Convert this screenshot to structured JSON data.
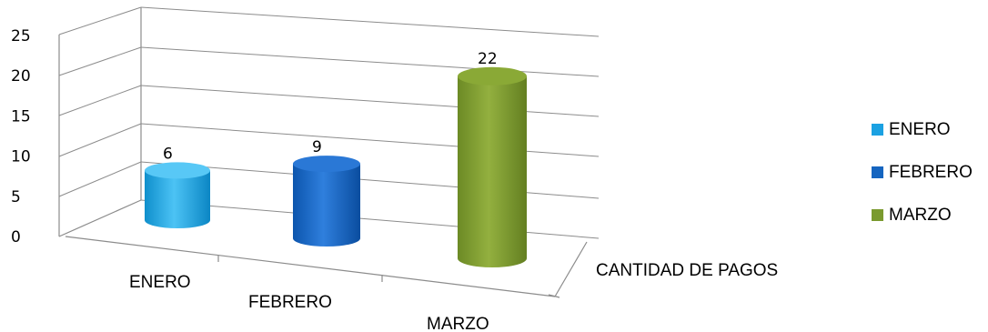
{
  "chart_data": {
    "type": "bar",
    "categories": [
      "ENERO",
      "FEBRERO",
      "MARZO"
    ],
    "series": [
      {
        "name": "ENERO",
        "values": [
          6,
          null,
          null
        ],
        "color": "#1ba1e2"
      },
      {
        "name": "FEBRERO",
        "values": [
          null,
          9,
          null
        ],
        "color": "#1565c0"
      },
      {
        "name": "MARZO",
        "values": [
          null,
          null,
          22
        ],
        "color": "#7a9a2e"
      }
    ],
    "values": [
      6,
      9,
      22
    ],
    "data_labels": [
      "6",
      "9",
      "22"
    ],
    "depth_label": "CANTIDAD DE PAGOS",
    "y_ticks": [
      "0",
      "5",
      "10",
      "15",
      "20",
      "25"
    ],
    "ylim": [
      0,
      25
    ],
    "grid": true,
    "legend_position": "right",
    "style": "3D cylinder"
  }
}
